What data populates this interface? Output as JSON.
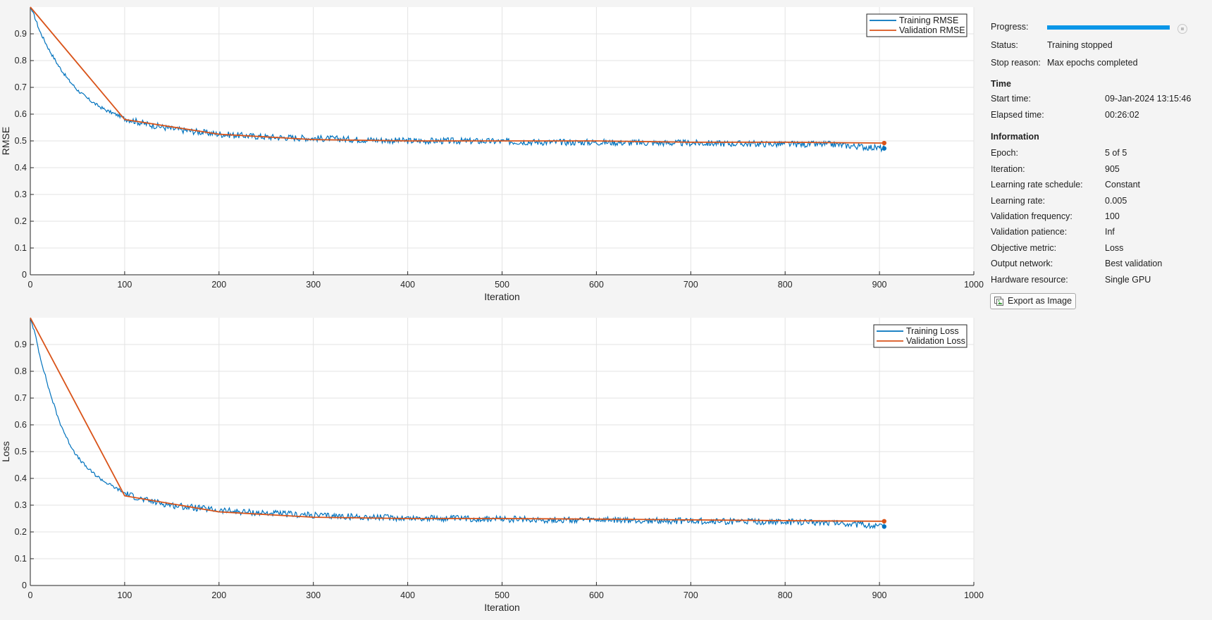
{
  "chart_data": [
    {
      "type": "line",
      "xlabel": "Iteration",
      "ylabel": "RMSE",
      "xlim": [
        0,
        1000
      ],
      "ylim": [
        0,
        1
      ],
      "xticks": [
        0,
        100,
        200,
        300,
        400,
        500,
        600,
        700,
        800,
        900,
        1000
      ],
      "yticks": [
        0,
        0.1,
        0.2,
        0.3,
        0.4,
        0.5,
        0.6,
        0.7,
        0.8,
        0.9
      ],
      "grid": true,
      "legend_position": "top-right",
      "series": [
        {
          "name": "Training RMSE",
          "color": "#0072bd",
          "x": [
            0,
            5,
            10,
            20,
            30,
            40,
            50,
            60,
            70,
            80,
            90,
            100,
            120,
            150,
            200,
            250,
            300,
            350,
            400,
            450,
            500,
            550,
            600,
            650,
            700,
            750,
            800,
            850,
            905
          ],
          "y": [
            1.0,
            0.96,
            0.91,
            0.84,
            0.78,
            0.73,
            0.69,
            0.66,
            0.635,
            0.615,
            0.6,
            0.585,
            0.565,
            0.545,
            0.525,
            0.515,
            0.51,
            0.505,
            0.5,
            0.5,
            0.498,
            0.495,
            0.495,
            0.493,
            0.492,
            0.49,
            0.488,
            0.487,
            0.472
          ],
          "noise": 0.012
        },
        {
          "name": "Validation RMSE",
          "color": "#d95319",
          "x": [
            0,
            100,
            200,
            300,
            400,
            500,
            600,
            700,
            800,
            900,
            905
          ],
          "y": [
            1.0,
            0.58,
            0.525,
            0.505,
            0.5,
            0.5,
            0.5,
            0.495,
            0.495,
            0.492,
            0.492
          ]
        }
      ]
    },
    {
      "type": "line",
      "xlabel": "Iteration",
      "ylabel": "Loss",
      "xlim": [
        0,
        1000
      ],
      "ylim": [
        0,
        1
      ],
      "xticks": [
        0,
        100,
        200,
        300,
        400,
        500,
        600,
        700,
        800,
        900,
        1000
      ],
      "yticks": [
        0,
        0.1,
        0.2,
        0.3,
        0.4,
        0.5,
        0.6,
        0.7,
        0.8,
        0.9
      ],
      "grid": true,
      "legend_position": "top-right",
      "series": [
        {
          "name": "Training Loss",
          "color": "#0072bd",
          "x": [
            0,
            5,
            10,
            20,
            30,
            40,
            50,
            60,
            70,
            80,
            90,
            100,
            120,
            150,
            200,
            250,
            300,
            350,
            400,
            450,
            500,
            550,
            600,
            650,
            700,
            750,
            800,
            850,
            905
          ],
          "y": [
            1.0,
            0.94,
            0.86,
            0.73,
            0.62,
            0.54,
            0.48,
            0.44,
            0.41,
            0.385,
            0.365,
            0.345,
            0.32,
            0.3,
            0.28,
            0.27,
            0.262,
            0.256,
            0.252,
            0.25,
            0.248,
            0.245,
            0.244,
            0.242,
            0.241,
            0.239,
            0.237,
            0.236,
            0.22
          ],
          "noise": 0.012
        },
        {
          "name": "Validation Loss",
          "color": "#d95319",
          "x": [
            0,
            100,
            200,
            300,
            400,
            500,
            600,
            700,
            800,
            900,
            905
          ],
          "y": [
            1.0,
            0.335,
            0.275,
            0.255,
            0.25,
            0.25,
            0.248,
            0.245,
            0.242,
            0.24,
            0.24
          ]
        }
      ]
    }
  ],
  "progress": {
    "label": "Progress:",
    "fraction": 1.0,
    "color": "#0a96e8"
  },
  "status": {
    "status_label": "Status:",
    "status_value": "Training stopped",
    "stop_reason_label": "Stop reason:",
    "stop_reason_value": "Max epochs completed"
  },
  "time": {
    "title": "Time",
    "start_label": "Start time:",
    "start_value": "09-Jan-2024 13:15:46",
    "elapsed_label": "Elapsed time:",
    "elapsed_value": "00:26:02"
  },
  "information": {
    "title": "Information",
    "items": [
      {
        "label": "Epoch:",
        "value": "5 of 5"
      },
      {
        "label": "Iteration:",
        "value": "905"
      },
      {
        "label": "Learning rate schedule:",
        "value": "Constant"
      },
      {
        "label": "Learning rate:",
        "value": "0.005"
      },
      {
        "label": "Validation frequency:",
        "value": "100"
      },
      {
        "label": "Validation patience:",
        "value": "Inf"
      },
      {
        "label": "Objective metric:",
        "value": "Loss"
      },
      {
        "label": "Output network:",
        "value": "Best validation"
      },
      {
        "label": "Hardware resource:",
        "value": "Single GPU"
      }
    ]
  },
  "export_button": {
    "label": "Export as Image",
    "icon": "export-image-icon"
  }
}
